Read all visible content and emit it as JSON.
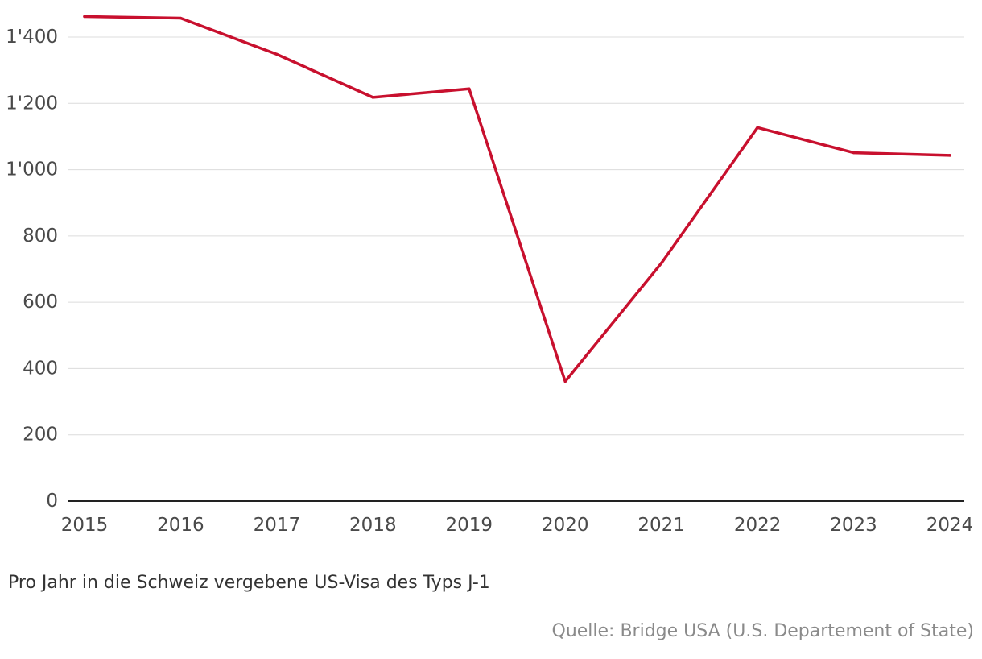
{
  "chart_data": {
    "type": "line",
    "title": "",
    "xlabel": "",
    "ylabel": "",
    "x": [
      "2015",
      "2016",
      "2017",
      "2018",
      "2019",
      "2020",
      "2021",
      "2022",
      "2023",
      "2024"
    ],
    "y_ticks": [
      0,
      200,
      400,
      600,
      800,
      1000,
      1200,
      1400
    ],
    "y_tick_labels": [
      "0",
      "200",
      "400",
      "600",
      "800",
      "1'000",
      "1'200",
      "1'400"
    ],
    "ylim": [
      0,
      1470
    ],
    "grid": true,
    "series": [
      {
        "name": "US-Visa J-1",
        "color": "#c8102e",
        "values": [
          1462,
          1457,
          1348,
          1218,
          1244,
          361,
          718,
          1127,
          1051,
          1043
        ]
      }
    ],
    "caption": "Pro Jahr in die Schweiz vergebene US-Visa des Typs J-1",
    "source": "Quelle: Bridge USA (U.S. Departement of State)"
  },
  "colors": {
    "line": "#c8102e",
    "grid": "#dcdcdc",
    "axis": "#222222"
  }
}
